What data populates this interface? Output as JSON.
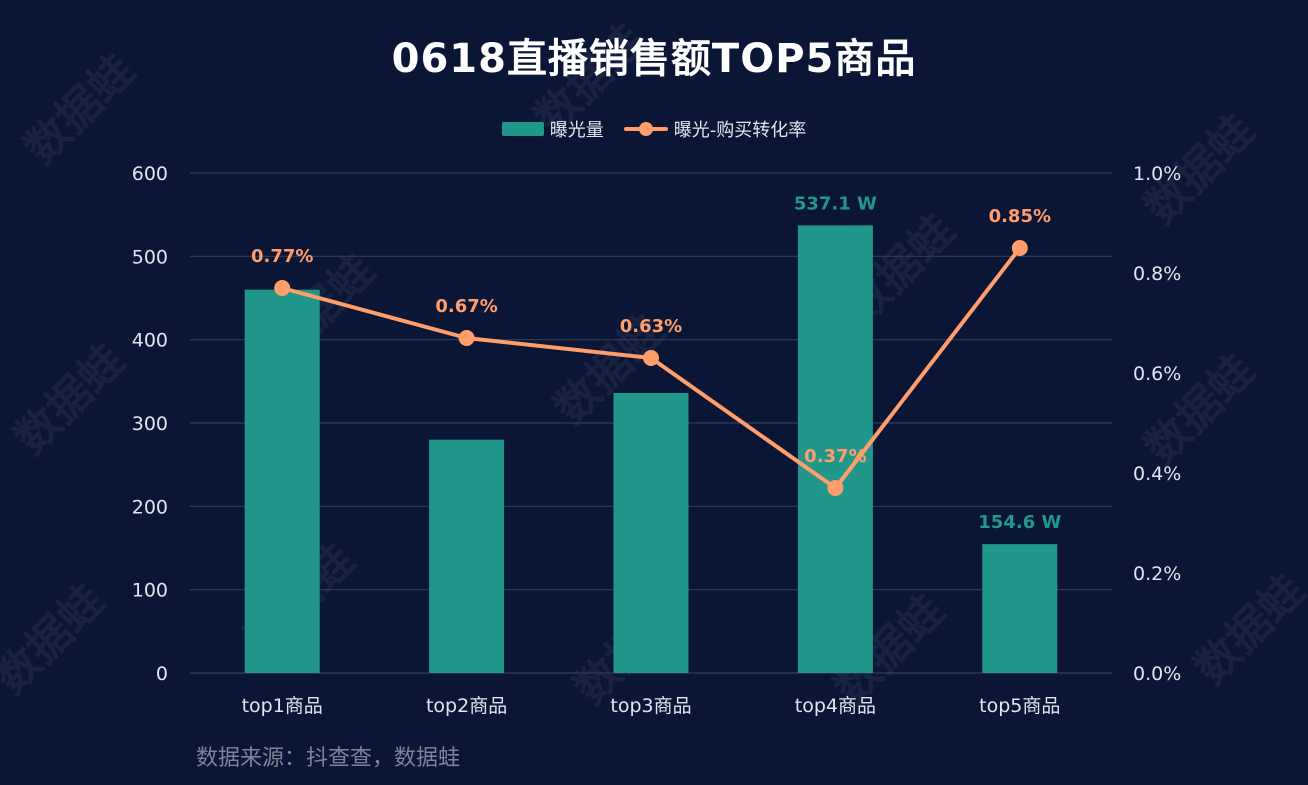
{
  "chart_data": {
    "type": "bar+line",
    "title": "0618直播销售额TOP5商品",
    "categories": [
      "top1商品",
      "top2商品",
      "top3商品",
      "top4商品",
      "top5商品"
    ],
    "series": [
      {
        "name": "曝光量",
        "type": "bar",
        "axis": "left",
        "values": [
          460,
          280,
          336,
          537.1,
          154.6
        ],
        "labels": [
          "",
          "",
          "",
          "537.1  W",
          "154.6  W"
        ],
        "color": "#21978b"
      },
      {
        "name": "曝光-购买转化率",
        "type": "line",
        "axis": "right",
        "values": [
          0.77,
          0.67,
          0.63,
          0.37,
          0.85
        ],
        "labels": [
          "0.77%",
          "0.67%",
          "0.63%",
          "0.37%",
          "0.85%"
        ],
        "color": "#ff9e6b"
      }
    ],
    "y_left": {
      "min": 0,
      "max": 600,
      "ticks": [
        "0",
        "100",
        "200",
        "300",
        "400",
        "500",
        "600"
      ]
    },
    "y_right": {
      "min": 0,
      "max": 1.0,
      "ticks": [
        "0.0%",
        "0.2%",
        "0.4%",
        "0.6%",
        "0.8%",
        "1.0%"
      ]
    },
    "grid": true,
    "legend_position": "top-center"
  },
  "legend": {
    "bar_label": "曝光量",
    "line_label": "曝光-购买转化率"
  },
  "source_text": "数据来源：抖查查，数据蛙",
  "watermark_text": "数据蛙",
  "colors": {
    "background": "#0b1535",
    "bar": "#21978b",
    "line": "#ff9e6b",
    "grid": "#2f3d5c",
    "axis_text": "#dfe6f2"
  }
}
